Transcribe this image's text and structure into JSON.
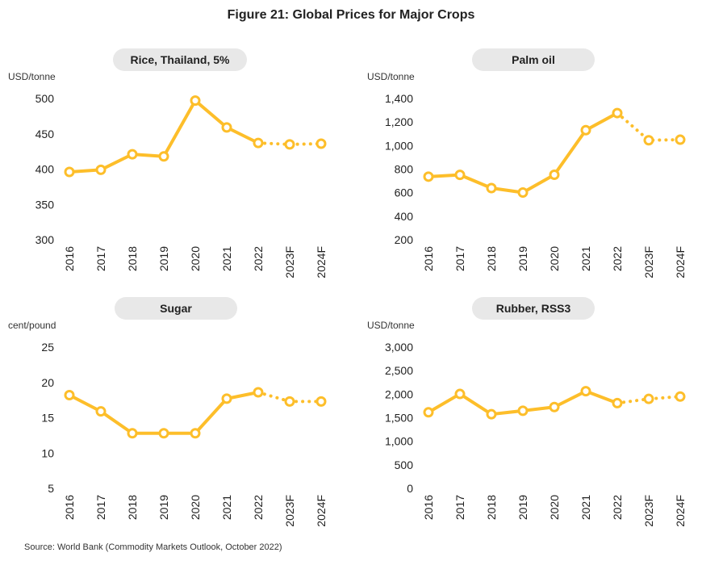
{
  "figure": {
    "title": "Figure 21: Global Prices for Major Crops",
    "source": "Source: World Bank (Commodity Markets Outlook, October 2022)",
    "line_color": "#FDBE2A"
  },
  "chart_data": [
    {
      "type": "line",
      "title": "Rice, Thailand, 5%",
      "ylabel": "USD/tonne",
      "categories": [
        "2016",
        "2017",
        "2018",
        "2019",
        "2020",
        "2021",
        "2022",
        "2023F",
        "2024F"
      ],
      "values": [
        396,
        399,
        421,
        418,
        497,
        459,
        437,
        435,
        436
      ],
      "actual_count": 7,
      "forecast_style": "dotted",
      "ylim": [
        300,
        500
      ],
      "yticks": [
        300,
        350,
        400,
        450,
        500
      ],
      "ytick_labels": [
        "300",
        "350",
        "400",
        "450",
        "500"
      ],
      "grid": false
    },
    {
      "type": "line",
      "title": "Palm oil",
      "ylabel": "USD/tonne",
      "categories": [
        "2016",
        "2017",
        "2018",
        "2019",
        "2020",
        "2021",
        "2022",
        "2023F",
        "2024F"
      ],
      "values": [
        736,
        751,
        639,
        601,
        752,
        1131,
        1276,
        1045,
        1050
      ],
      "actual_count": 7,
      "forecast_style": "dotted",
      "ylim": [
        200,
        1400
      ],
      "yticks": [
        200,
        400,
        600,
        800,
        1000,
        1200,
        1400
      ],
      "ytick_labels": [
        "200",
        "400",
        "600",
        "800",
        "1,000",
        "1,200",
        "1,400"
      ],
      "grid": false
    },
    {
      "type": "line",
      "title": "Sugar",
      "ylabel": "cent/pound",
      "categories": [
        "2016",
        "2017",
        "2018",
        "2019",
        "2020",
        "2021",
        "2022",
        "2023F",
        "2024F"
      ],
      "values": [
        18.2,
        15.9,
        12.8,
        12.8,
        12.8,
        17.7,
        18.6,
        17.3,
        17.3
      ],
      "actual_count": 7,
      "forecast_style": "dotted",
      "ylim": [
        5,
        25
      ],
      "yticks": [
        5,
        10,
        15,
        20,
        25
      ],
      "ytick_labels": [
        "5",
        "10",
        "15",
        "20",
        "25"
      ],
      "grid": false
    },
    {
      "type": "line",
      "title": "Rubber, RSS3",
      "ylabel": "USD/tonne",
      "categories": [
        "2016",
        "2017",
        "2018",
        "2019",
        "2020",
        "2021",
        "2022",
        "2023F",
        "2024F"
      ],
      "values": [
        1615,
        2005,
        1574,
        1648,
        1727,
        2063,
        1810,
        1900,
        1950
      ],
      "actual_count": 7,
      "forecast_style": "dotted",
      "ylim": [
        0,
        3000
      ],
      "yticks": [
        0,
        500,
        1000,
        1500,
        2000,
        2500,
        3000
      ],
      "ytick_labels": [
        "0",
        "500",
        "1,000",
        "1,500",
        "2,000",
        "2,500",
        "3,000"
      ],
      "grid": false
    }
  ]
}
